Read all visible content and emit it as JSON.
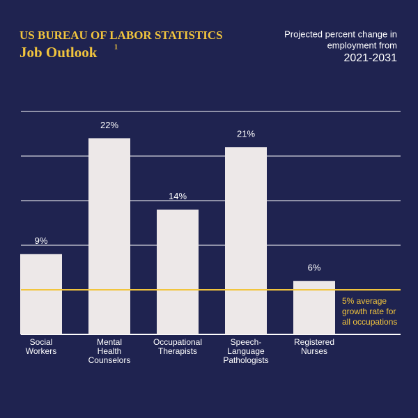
{
  "chart_data": {
    "type": "bar",
    "title": "US BUREAU OF LABOR STATISTICS",
    "subtitle": "Job Outlook",
    "footnote_mark": "1",
    "note_lines": [
      "Projected percent change in",
      "employment from"
    ],
    "period": "2021-2031",
    "categories": [
      [
        "Social",
        "Workers"
      ],
      [
        "Mental",
        "Health",
        "Counselors"
      ],
      [
        "Occupational",
        "Therapists"
      ],
      [
        "Speech-",
        "Language",
        "Pathologists"
      ],
      [
        "Registered",
        "Nurses"
      ]
    ],
    "values": [
      9,
      22,
      14,
      21,
      6
    ],
    "value_labels": [
      "9%",
      "22%",
      "14%",
      "21%",
      "6%"
    ],
    "color": "#ede8e8",
    "ylim": [
      0,
      25
    ],
    "yticks": [
      0,
      5,
      10,
      15,
      20,
      25
    ],
    "grid": true,
    "reference_line": {
      "value": 5,
      "color": "#f2c53d",
      "label": [
        "5% average",
        "growth rate for",
        "all occupations"
      ]
    }
  }
}
